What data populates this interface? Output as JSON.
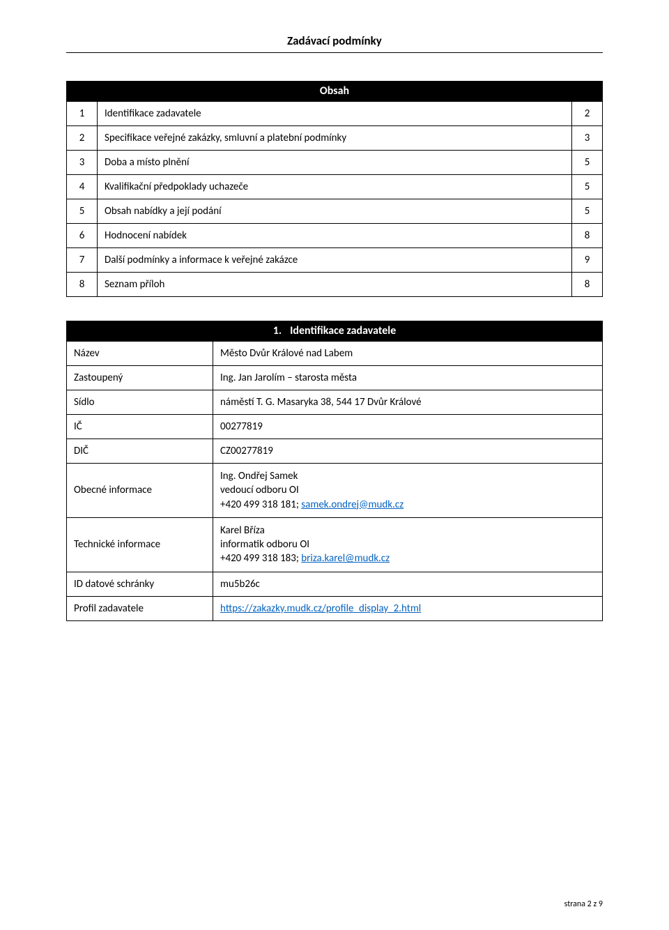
{
  "doc": {
    "title": "Zadávací podmínky",
    "footer": "strana 2 z 9"
  },
  "contents": {
    "header": "Obsah",
    "rows": [
      {
        "n": "1",
        "title": "Identifikace zadavatele",
        "page": "2"
      },
      {
        "n": "2",
        "title": "Specifikace veřejné zakázky, smluvní a platební podmínky",
        "page": "3"
      },
      {
        "n": "3",
        "title": "Doba a místo plnění",
        "page": "5"
      },
      {
        "n": "4",
        "title": "Kvalifikační předpoklady uchazeče",
        "page": "5"
      },
      {
        "n": "5",
        "title": "Obsah nabídky a její podání",
        "page": "5"
      },
      {
        "n": "6",
        "title": "Hodnocení nabídek",
        "page": "8"
      },
      {
        "n": "7",
        "title": "Další podmínky a informace k veřejné zakázce",
        "page": "9"
      },
      {
        "n": "8",
        "title": "Seznam příloh",
        "page": "8"
      }
    ]
  },
  "section1": {
    "header_num": "1.",
    "header_text": "Identifikace zadavatele",
    "rows": {
      "nazev": {
        "label": "Název",
        "value": "Město Dvůr Králové nad Labem"
      },
      "zastoupeny": {
        "label": "Zastoupený",
        "value": "Ing. Jan Jarolím – starosta města"
      },
      "sidlo": {
        "label": "Sídlo",
        "value": "náměstí T. G. Masaryka 38, 544 17 Dvůr Králové"
      },
      "ic": {
        "label": "IČ",
        "value": "00277819"
      },
      "dic": {
        "label": "DIČ",
        "value": "CZ00277819"
      },
      "obecne": {
        "label": "Obecné informace",
        "line1": "Ing. Ondřej Samek",
        "line2": "vedoucí odboru OI",
        "line3_prefix": "+420 499 318 181; ",
        "line3_link": "samek.ondrej@mudk.cz"
      },
      "technicke": {
        "label": "Technické informace",
        "line1": "Karel Bříza",
        "line2": "informatik odboru OI",
        "line3_prefix": "+420 499 318 183; ",
        "line3_link": "briza.karel@mudk.cz"
      },
      "schranka": {
        "label": "ID datové schránky",
        "value": "mu5b26c"
      },
      "profil": {
        "label": "Profil zadavatele",
        "link": "https://zakazky.mudk.cz/profile_display_2.html"
      }
    }
  },
  "colors": {
    "link": "#0563c1",
    "text": "#000000",
    "header_bg": "#000000",
    "header_fg": "#ffffff",
    "border": "#000000",
    "background": "#ffffff"
  }
}
